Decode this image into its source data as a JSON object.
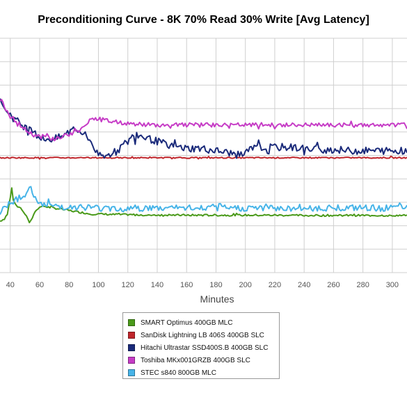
{
  "chart_data": {
    "type": "line",
    "title": "Preconditioning Curve - 8K 70% Read 30% Write [Avg Latency]",
    "xlabel": "Minutes",
    "ylabel": "",
    "xlim": [
      33,
      310
    ],
    "x_ticks": [
      40,
      60,
      80,
      100,
      120,
      140,
      160,
      180,
      200,
      220,
      240,
      260,
      280,
      300
    ],
    "ylim": [
      0,
      100
    ],
    "grid": true,
    "legend_position": "bottom-center",
    "series": [
      {
        "name": "SMART Optimus 400GB MLC",
        "color": "#4a9a1a",
        "points": [
          [
            33,
            22
          ],
          [
            36,
            23
          ],
          [
            38,
            25
          ],
          [
            40,
            32
          ],
          [
            41,
            36
          ],
          [
            42,
            31
          ],
          [
            44,
            29
          ],
          [
            46,
            28
          ],
          [
            48,
            27
          ],
          [
            50,
            25
          ],
          [
            52,
            23
          ],
          [
            53,
            21
          ],
          [
            54,
            22
          ],
          [
            56,
            25
          ],
          [
            58,
            27
          ],
          [
            60,
            28
          ],
          [
            62,
            28.5
          ],
          [
            65,
            28
          ],
          [
            70,
            27.5
          ],
          [
            75,
            27
          ],
          [
            80,
            26.5
          ],
          [
            85,
            26
          ],
          [
            90,
            25.5
          ],
          [
            95,
            25
          ],
          [
            100,
            25
          ],
          [
            110,
            24.8
          ],
          [
            120,
            24.7
          ],
          [
            140,
            24.6
          ],
          [
            160,
            24.5
          ],
          [
            180,
            24.5
          ],
          [
            200,
            24.5
          ],
          [
            220,
            24.5
          ],
          [
            240,
            24.4
          ],
          [
            260,
            24.4
          ],
          [
            280,
            24.4
          ],
          [
            300,
            24.4
          ],
          [
            310,
            24.4
          ]
        ],
        "noise": 0.4
      },
      {
        "name": "SanDisk Lightning LB 406S 400GB SLC",
        "color": "#c0262c",
        "points": [
          [
            33,
            49
          ],
          [
            60,
            49
          ],
          [
            100,
            49
          ],
          [
            150,
            49
          ],
          [
            200,
            49
          ],
          [
            250,
            49
          ],
          [
            310,
            49
          ]
        ],
        "noise": 0.25
      },
      {
        "name": "Hitachi Ultrastar SSD400S.B 400GB SLC",
        "color": "#1a2a7a",
        "points": [
          [
            33,
            74
          ],
          [
            35,
            71
          ],
          [
            38,
            69
          ],
          [
            42,
            66
          ],
          [
            46,
            64
          ],
          [
            50,
            62
          ],
          [
            55,
            60
          ],
          [
            60,
            58
          ],
          [
            65,
            57
          ],
          [
            70,
            57
          ],
          [
            75,
            58
          ],
          [
            80,
            60
          ],
          [
            85,
            61
          ],
          [
            90,
            59
          ],
          [
            95,
            56
          ],
          [
            98,
            52
          ],
          [
            100,
            50
          ],
          [
            103,
            49
          ],
          [
            106,
            50
          ],
          [
            110,
            51
          ],
          [
            113,
            52
          ],
          [
            116,
            54
          ],
          [
            120,
            56
          ],
          [
            125,
            59
          ],
          [
            130,
            58
          ],
          [
            135,
            57
          ],
          [
            140,
            56
          ],
          [
            150,
            54
          ],
          [
            160,
            53
          ],
          [
            170,
            53
          ],
          [
            180,
            52
          ],
          [
            190,
            51
          ],
          [
            196,
            50
          ],
          [
            200,
            51
          ],
          [
            205,
            53
          ],
          [
            210,
            53.5
          ],
          [
            220,
            53.5
          ],
          [
            230,
            53.5
          ],
          [
            240,
            53
          ],
          [
            250,
            52.5
          ],
          [
            260,
            52.5
          ],
          [
            270,
            52
          ],
          [
            280,
            52
          ],
          [
            290,
            52
          ],
          [
            300,
            52
          ],
          [
            310,
            52
          ]
        ],
        "noise": 1.6
      },
      {
        "name": "Toshiba MKx001GRZB 400GB SLC",
        "color": "#c63cc6",
        "points": [
          [
            33,
            74
          ],
          [
            36,
            71
          ],
          [
            40,
            67
          ],
          [
            45,
            64
          ],
          [
            50,
            61
          ],
          [
            55,
            59
          ],
          [
            60,
            58
          ],
          [
            65,
            58
          ],
          [
            70,
            57
          ],
          [
            75,
            58
          ],
          [
            80,
            59
          ],
          [
            85,
            60
          ],
          [
            90,
            62
          ],
          [
            93,
            64
          ],
          [
            96,
            66
          ],
          [
            100,
            65.5
          ],
          [
            105,
            65
          ],
          [
            110,
            64.5
          ],
          [
            115,
            64
          ],
          [
            120,
            63.5
          ],
          [
            130,
            63.2
          ],
          [
            140,
            63
          ],
          [
            150,
            63
          ],
          [
            160,
            63
          ],
          [
            180,
            63
          ],
          [
            200,
            63
          ],
          [
            220,
            63
          ],
          [
            240,
            63
          ],
          [
            260,
            63
          ],
          [
            280,
            63
          ],
          [
            300,
            63
          ],
          [
            310,
            63
          ]
        ],
        "noise": 0.9
      },
      {
        "name": "STEC s840 800GB MLC",
        "color": "#47b4e8",
        "points": [
          [
            33,
            25
          ],
          [
            35,
            27
          ],
          [
            38,
            29
          ],
          [
            40,
            30
          ],
          [
            43,
            31
          ],
          [
            46,
            32
          ],
          [
            48,
            33
          ],
          [
            50,
            33
          ],
          [
            52,
            34
          ],
          [
            54,
            35
          ],
          [
            56,
            33
          ],
          [
            58,
            31
          ],
          [
            60,
            30
          ],
          [
            64,
            29
          ],
          [
            70,
            28.5
          ],
          [
            80,
            28
          ],
          [
            90,
            28
          ],
          [
            100,
            27.5
          ],
          [
            110,
            27.5
          ],
          [
            120,
            27.5
          ],
          [
            140,
            27.5
          ],
          [
            160,
            27.5
          ],
          [
            180,
            27.5
          ],
          [
            200,
            27.5
          ],
          [
            220,
            27.5
          ],
          [
            240,
            27.5
          ],
          [
            260,
            27.5
          ],
          [
            280,
            27.5
          ],
          [
            300,
            27.5
          ],
          [
            310,
            27.5
          ]
        ],
        "noise": 1.4
      }
    ]
  }
}
